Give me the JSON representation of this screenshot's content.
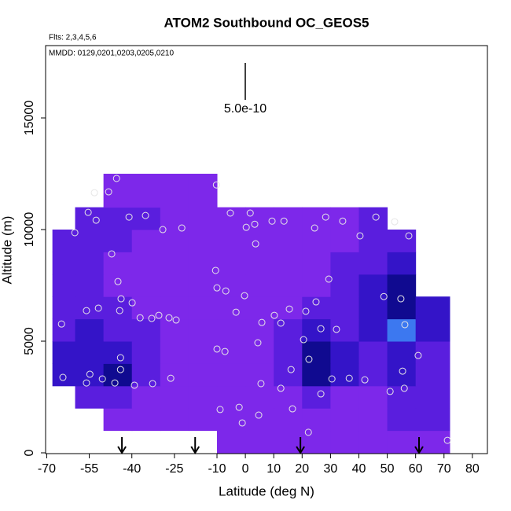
{
  "chart_data": {
    "type": "curtain",
    "title": "ATOM2 Southbound OC_GEOS5",
    "flights": "Flts: 2,3,4,5,6",
    "dates": "MMDD: 0129,0201,0203,0205,0210",
    "x_label": "Latitude (deg N)",
    "y_label": "Altitude (m)",
    "xlim": [
      -70.4,
      85.3
    ],
    "ylim": [
      -35,
      18240
    ],
    "xticks": [
      -70,
      -55,
      -40,
      -25,
      -10,
      0,
      10,
      20,
      30,
      40,
      50,
      60,
      70,
      80
    ],
    "yticks": [
      0,
      5000,
      10000,
      15000
    ],
    "scale_bar": {
      "value": 5e-10,
      "label": "5.0e-10"
    },
    "palette": [
      "#100a90",
      "#3414c8",
      "#5a1ede",
      "#7d28ea",
      "#3c78f0"
    ],
    "field": {
      "lat_edges": [
        -68,
        -60,
        -50,
        -40,
        -30,
        -20,
        -10,
        0,
        10,
        20,
        30,
        40,
        50,
        60,
        72
      ],
      "alt_edges": [
        0,
        1000,
        2000,
        3000,
        4000,
        5000,
        6000,
        7000,
        8000,
        9000,
        10000,
        11000,
        12500
      ],
      "levels": [
        [
          null,
          null,
          null,
          null,
          null,
          null,
          3,
          3,
          3,
          3,
          3,
          3,
          3,
          3
        ],
        [
          null,
          null,
          3,
          3,
          3,
          3,
          3,
          3,
          3,
          3,
          3,
          3,
          2,
          2
        ],
        [
          null,
          2,
          2,
          3,
          3,
          3,
          3,
          3,
          3,
          2,
          3,
          3,
          2,
          2
        ],
        [
          1,
          1,
          0,
          2,
          3,
          3,
          3,
          3,
          2,
          0,
          1,
          2,
          1,
          2
        ],
        [
          1,
          1,
          1,
          2,
          3,
          3,
          3,
          3,
          2,
          0,
          1,
          2,
          1,
          2
        ],
        [
          2,
          1,
          2,
          2,
          3,
          3,
          3,
          3,
          2,
          1,
          2,
          1,
          4,
          1
        ],
        [
          2,
          2,
          2,
          3,
          3,
          3,
          3,
          3,
          3,
          2,
          2,
          1,
          0,
          1
        ],
        [
          2,
          2,
          3,
          3,
          3,
          3,
          3,
          3,
          3,
          3,
          2,
          1,
          0,
          null
        ],
        [
          2,
          2,
          3,
          3,
          3,
          3,
          3,
          3,
          3,
          3,
          2,
          2,
          1,
          null
        ],
        [
          2,
          2,
          2,
          3,
          3,
          3,
          3,
          3,
          3,
          3,
          3,
          2,
          2,
          null
        ],
        [
          null,
          2,
          2,
          2,
          3,
          3,
          3,
          3,
          3,
          3,
          3,
          2,
          null,
          null
        ],
        [
          null,
          null,
          3,
          3,
          3,
          3,
          null,
          null,
          null,
          null,
          null,
          null,
          null,
          null
        ]
      ]
    },
    "points": {
      "x": [
        -45.4,
        -48.2,
        -53.2,
        -55.4,
        -60.1,
        -52.6,
        -41.0,
        -35.2,
        -29.1,
        -22.4,
        -47.1,
        -44.9,
        -43.8,
        -44.3,
        -39.9,
        -56.0,
        -51.8,
        -37.1,
        -33.0,
        -30.5,
        -26.9,
        -24.4,
        -64.8,
        -64.3,
        -54.8,
        -56.0,
        -50.4,
        -46.0,
        -44.0,
        -44.0,
        -39.1,
        -32.7,
        -26.3,
        -10.2,
        -10.5,
        -10.0,
        -6.9,
        -10.0,
        -7.2,
        -5.3,
        1.7,
        3.3,
        0.3,
        3.6,
        -3.3,
        -0.3,
        5.8,
        4.4,
        5.5,
        10.2,
        12.5,
        9.4,
        13.6,
        15.5,
        21.3,
        24.9,
        29.4,
        26.6,
        20.5,
        22.4,
        16.1,
        12.5,
        16.6,
        4.7,
        -2.2,
        -8.9,
        -1.1,
        22.2,
        26.6,
        30.5,
        32.1,
        36.6,
        42.1,
        34.3,
        28.3,
        24.4,
        40.4,
        46.0,
        52.6,
        57.6,
        48.8,
        54.8,
        56.2,
        60.9,
        55.4,
        56.0,
        51.0,
        71.2
      ],
      "y": [
        12290,
        11690,
        11650,
        10770,
        9860,
        10420,
        10560,
        10630,
        10000,
        10070,
        8910,
        7670,
        6900,
        6370,
        6720,
        6370,
        6480,
        6050,
        6020,
        6160,
        6050,
        5950,
        5770,
        3380,
        3520,
        3130,
        3310,
        3130,
        4260,
        3730,
        3030,
        3100,
        3340,
        12000,
        8170,
        7390,
        7250,
        4650,
        4540,
        10740,
        10740,
        10240,
        10100,
        9360,
        6300,
        7040,
        5840,
        4930,
        3100,
        6160,
        5810,
        10380,
        10380,
        6440,
        6340,
        6760,
        7780,
        5560,
        5070,
        4190,
        3730,
        2890,
        1970,
        1690,
        2040,
        1940,
        1340,
        920,
        2640,
        3310,
        5530,
        3340,
        3270,
        10380,
        10560,
        10070,
        9720,
        10560,
        10350,
        9720,
        7000,
        6900,
        5740,
        4360,
        3660,
        2890,
        2750,
        560
      ]
    },
    "arrows": [
      -43.5,
      -17.7,
      19.4,
      61.2
    ]
  }
}
